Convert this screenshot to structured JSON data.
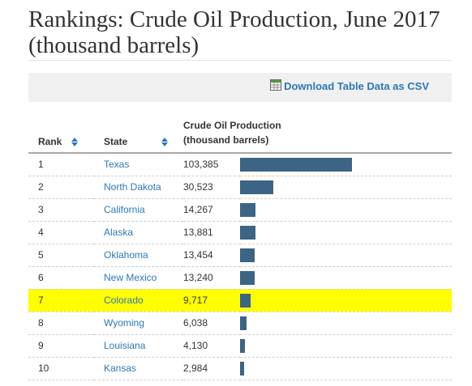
{
  "page": {
    "title": "Rankings: Crude Oil Production, June 2017 (thousand barrels)"
  },
  "toolbar": {
    "download_label": "Download Table Data as CSV",
    "download_icon": "spreadsheet-icon"
  },
  "table": {
    "headers": {
      "rank": "Rank",
      "state": "State",
      "production_line1": "Crude Oil Production",
      "production_line2": "(thousand barrels)"
    },
    "bar_max": 103385,
    "bar_color": "#3b6485",
    "highlight_color": "#ffff00",
    "rows": [
      {
        "rank": "1",
        "state": "Texas",
        "value": "103,385",
        "num": 103385,
        "highlight": false
      },
      {
        "rank": "2",
        "state": "North Dakota",
        "value": "30,523",
        "num": 30523,
        "highlight": false
      },
      {
        "rank": "3",
        "state": "California",
        "value": "14,267",
        "num": 14267,
        "highlight": false
      },
      {
        "rank": "4",
        "state": "Alaska",
        "value": "13,881",
        "num": 13881,
        "highlight": false
      },
      {
        "rank": "5",
        "state": "Oklahoma",
        "value": "13,454",
        "num": 13454,
        "highlight": false
      },
      {
        "rank": "6",
        "state": "New Mexico",
        "value": "13,240",
        "num": 13240,
        "highlight": false
      },
      {
        "rank": "7",
        "state": "Colorado",
        "value": "9,717",
        "num": 9717,
        "highlight": true
      },
      {
        "rank": "8",
        "state": "Wyoming",
        "value": "6,038",
        "num": 6038,
        "highlight": false
      },
      {
        "rank": "9",
        "state": "Louisiana",
        "value": "4,130",
        "num": 4130,
        "highlight": false
      },
      {
        "rank": "10",
        "state": "Kansas",
        "value": "2,984",
        "num": 2984,
        "highlight": false
      }
    ]
  }
}
